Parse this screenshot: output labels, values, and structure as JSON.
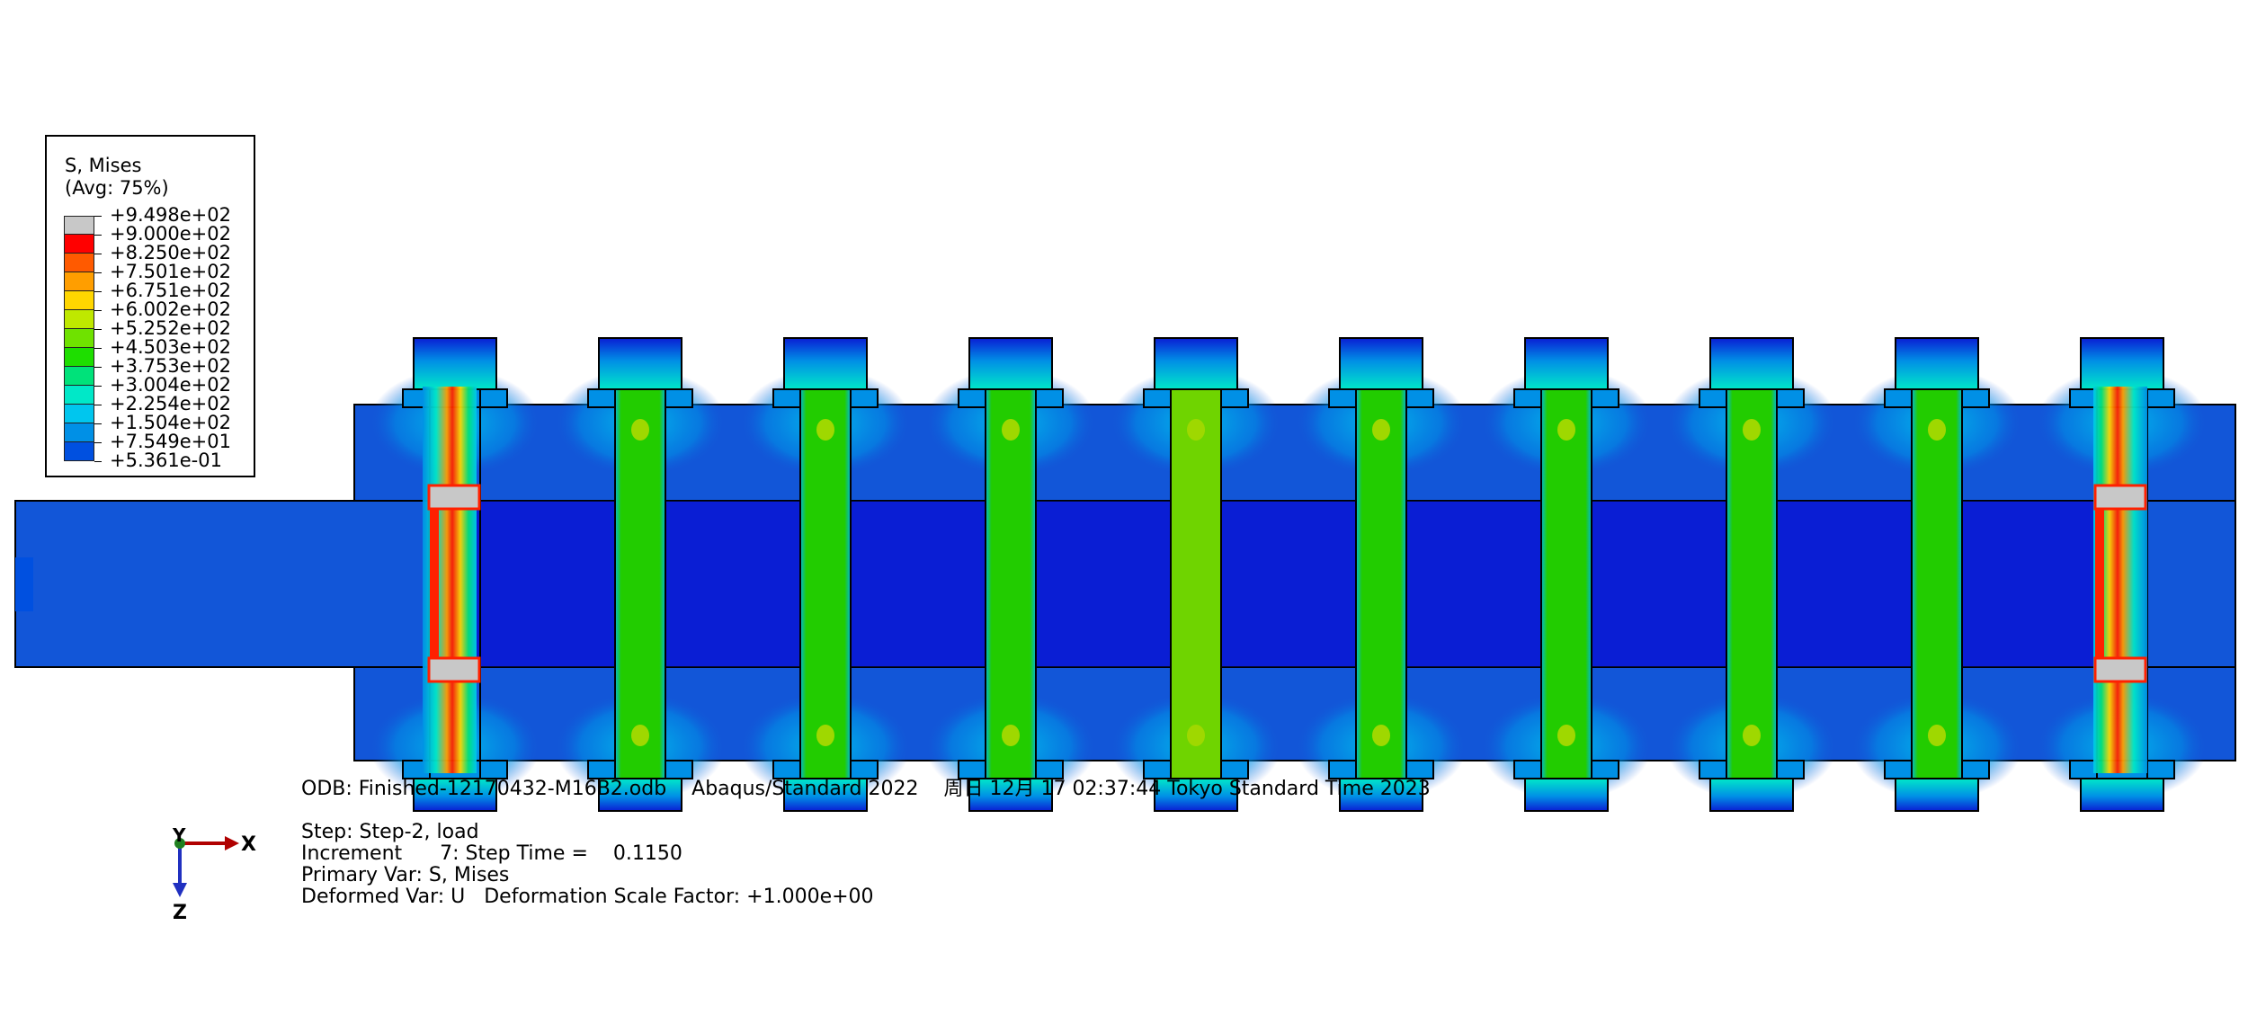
{
  "legend": {
    "title": "S, Mises",
    "subtitle": "(Avg: 75%)",
    "levels": [
      {
        "value": "+9.498e+02",
        "color": "#c8c8c8"
      },
      {
        "value": "+9.000e+02",
        "color": "#ff0000"
      },
      {
        "value": "+8.250e+02",
        "color": "#ff5a00"
      },
      {
        "value": "+7.501e+02",
        "color": "#ff9e00"
      },
      {
        "value": "+6.751e+02",
        "color": "#ffd600"
      },
      {
        "value": "+6.002e+02",
        "color": "#bfe800"
      },
      {
        "value": "+5.252e+02",
        "color": "#6fe200"
      },
      {
        "value": "+4.503e+02",
        "color": "#1ede00"
      },
      {
        "value": "+3.753e+02",
        "color": "#00e27a"
      },
      {
        "value": "+3.004e+02",
        "color": "#00e8c8"
      },
      {
        "value": "+2.254e+02",
        "color": "#00c6ee"
      },
      {
        "value": "+1.504e+02",
        "color": "#0090e6"
      },
      {
        "value": "+7.549e+01",
        "color": "#0050e0"
      },
      {
        "value": "+5.361e-01",
        "color": null
      }
    ]
  },
  "info": {
    "odb_line": "ODB: Finished-12170432-M16B2.odb    Abaqus/Standard 2022    周日 12月 17 02:37:44 Tokyo Standard Time 2023",
    "step_line": "Step: Step-2, load",
    "increment_line": "Increment      7: Step Time =    0.1150",
    "primary_var_line": "Primary Var: S, Mises",
    "deformed_var_line": "Deformed Var: U   Deformation Scale Factor: +1.000e+00"
  },
  "triad": {
    "x_label": "X",
    "y_label": "Y",
    "z_label": "Z"
  },
  "colors": {
    "plate_base": "#1256d8",
    "core_base": "#0a1ed4",
    "bolt_green": "#22cc00",
    "bolt_middle": "#6fd400",
    "head_cyan": "#00c8e0",
    "edge_red": "#ff2000",
    "hot_grey": "#c8c8c8"
  }
}
